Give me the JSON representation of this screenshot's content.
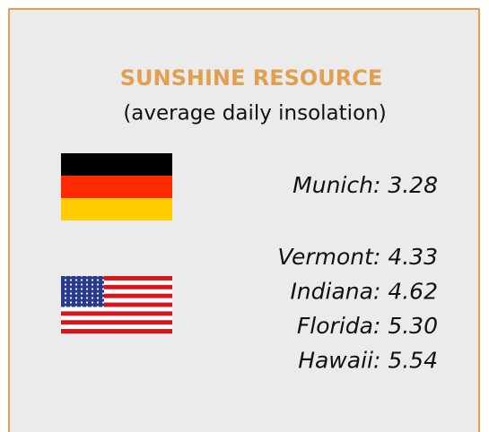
{
  "card": {
    "title": "SUNSHINE RESOURCE",
    "subtitle": "(average daily insolation)",
    "groups": [
      {
        "entries": [
          "Munich: 3.28"
        ]
      },
      {
        "entries": [
          "Vermont: 4.33",
          "Indiana: 4.62",
          "Florida: 5.30",
          "Hawaii: 5.54"
        ]
      }
    ]
  }
}
